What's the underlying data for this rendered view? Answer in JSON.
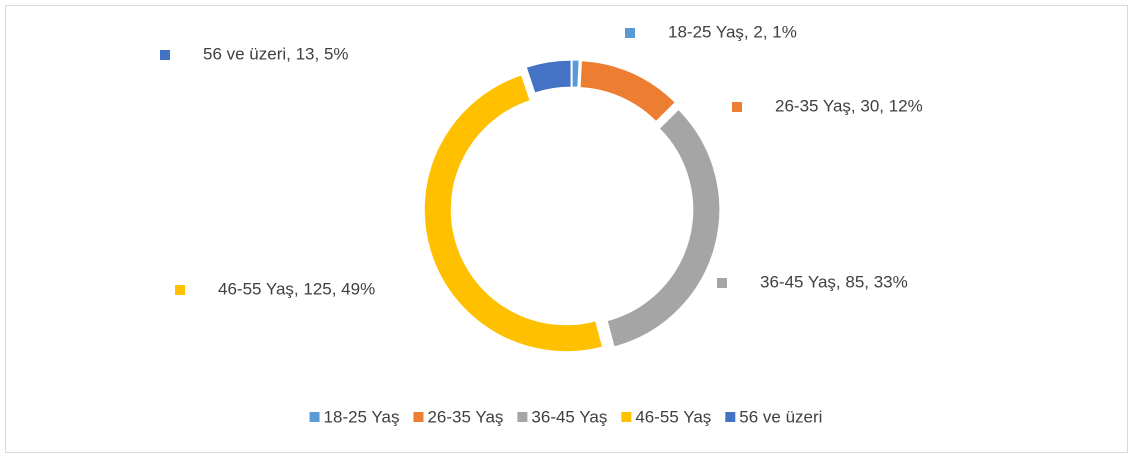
{
  "chart_data": {
    "type": "donut",
    "categories": [
      "18-25 Yaş",
      "26-35 Yaş",
      "36-45 Yaş",
      "46-55 Yaş",
      "56 ve üzeri"
    ],
    "values": [
      2,
      30,
      85,
      125,
      13
    ],
    "value_labels": [
      "18-25 Yaş, 2, 1%",
      "26-35 Yaş, 30, 12%",
      "36-45 Yaş, 85, 33%",
      "46-55 Yaş, 125, 49%",
      "56 ve üzeri, 13, 5%"
    ],
    "colors": [
      "#5b9bd5",
      "#ed7d31",
      "#a5a5a5",
      "#ffc000",
      "#4472c4"
    ],
    "legend": "bottom"
  }
}
